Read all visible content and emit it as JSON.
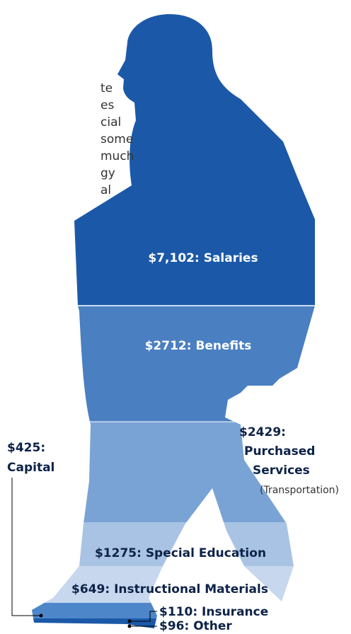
{
  "intro_fragment": [
    "te",
    "es",
    "cial",
    "some",
    "much",
    "gy",
    "al"
  ],
  "segments": {
    "salaries": "$7,102: Salaries",
    "benefits": "$2712: Benefits",
    "purchased_services": {
      "amount": "$2429:",
      "lines": [
        "Purchased",
        "Services"
      ],
      "note": "(Transportation)"
    },
    "capital": {
      "amount": "$425:",
      "label": "Capital"
    },
    "special_education": "$1275: Special Education",
    "instructional_materials": "$649: Instructional Materials",
    "insurance": "$110: Insurance",
    "other": "$96: Other"
  }
}
